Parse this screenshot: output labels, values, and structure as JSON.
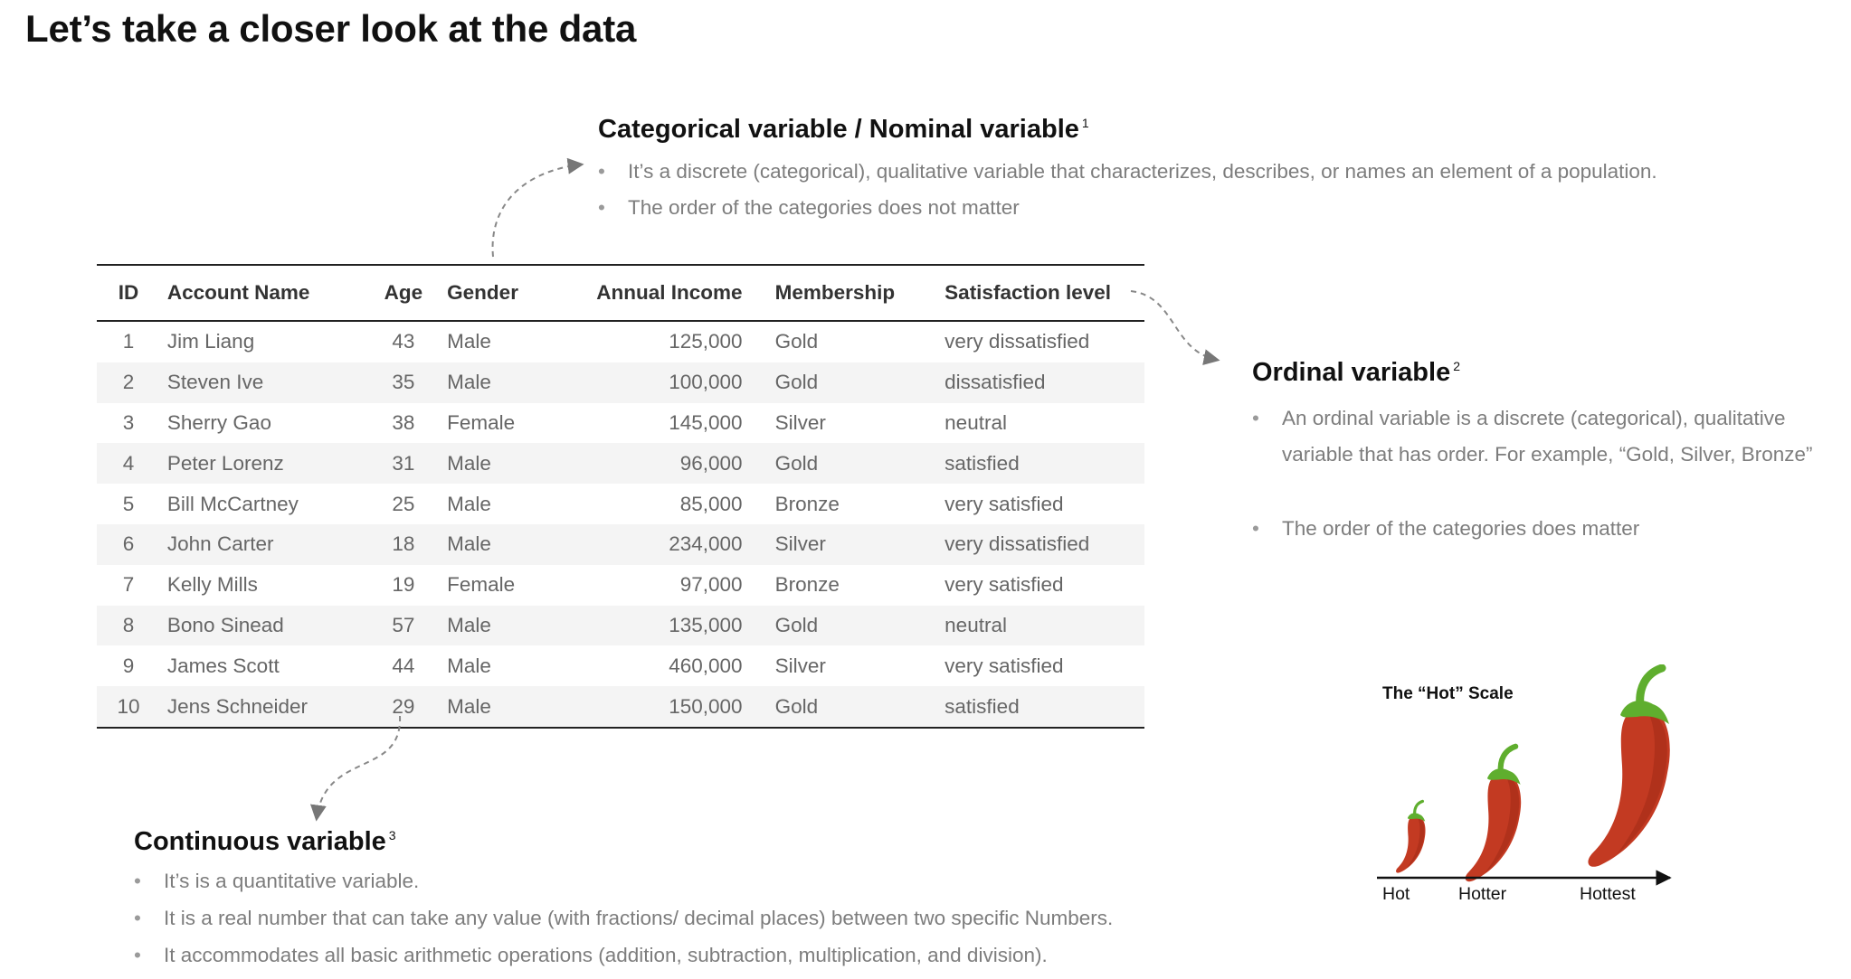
{
  "slide_title": "Let’s take a closer look at the data",
  "categorical": {
    "title": "Categorical variable / Nominal variable",
    "footnote": "1",
    "bullets": [
      "It’s a discrete (categorical), qualitative variable that characterizes, describes, or names an element of a population.",
      "The order of the categories does not matter"
    ]
  },
  "ordinal": {
    "title": "Ordinal variable",
    "footnote": "2",
    "bullets": [
      "An ordinal variable is a discrete (categorical), qualitative variable that has order. For example, “Gold, Silver, Bronze”",
      "The order of the categories does matter"
    ]
  },
  "continuous": {
    "title": "Continuous variable",
    "footnote": "3",
    "bullets": [
      "It’s is a quantitative variable.",
      "It is a real number that can take any value (with fractions/ decimal places) between two specific Numbers.",
      "It accommodates all basic arithmetic operations (addition, subtraction, multiplication, and division)."
    ]
  },
  "table": {
    "headers": [
      "ID",
      "Account Name",
      "Age",
      "Gender",
      "Annual Income",
      "Membership",
      "Satisfaction level"
    ],
    "rows": [
      [
        "1",
        "Jim Liang",
        "43",
        "Male",
        "125,000",
        "Gold",
        "very dissatisfied"
      ],
      [
        "2",
        "Steven Ive",
        "35",
        "Male",
        "100,000",
        "Gold",
        "dissatisfied"
      ],
      [
        "3",
        "Sherry Gao",
        "38",
        "Female",
        "145,000",
        "Silver",
        "neutral"
      ],
      [
        "4",
        "Peter Lorenz",
        "31",
        "Male",
        "96,000",
        "Gold",
        "satisfied"
      ],
      [
        "5",
        "Bill McCartney",
        "25",
        "Male",
        "85,000",
        "Bronze",
        "very satisfied"
      ],
      [
        "6",
        "John Carter",
        "18",
        "Male",
        "234,000",
        "Silver",
        "very dissatisfied"
      ],
      [
        "7",
        "Kelly Mills",
        "19",
        "Female",
        "97,000",
        "Bronze",
        "very satisfied"
      ],
      [
        "8",
        "Bono Sinead",
        "57",
        "Male",
        "135,000",
        "Gold",
        "neutral"
      ],
      [
        "9",
        "James Scott",
        "44",
        "Male",
        "460,000",
        "Silver",
        "very satisfied"
      ],
      [
        "10",
        "Jens Schneider",
        "29",
        "Male",
        "150,000",
        "Gold",
        "satisfied"
      ]
    ]
  },
  "hot_scale": {
    "title": "The “Hot” Scale",
    "labels": [
      "Hot",
      "Hotter",
      "Hottest"
    ],
    "icon": "chili-pepper-icon",
    "pepper_color": "#c33a22",
    "stem_color": "#5fae2e"
  }
}
